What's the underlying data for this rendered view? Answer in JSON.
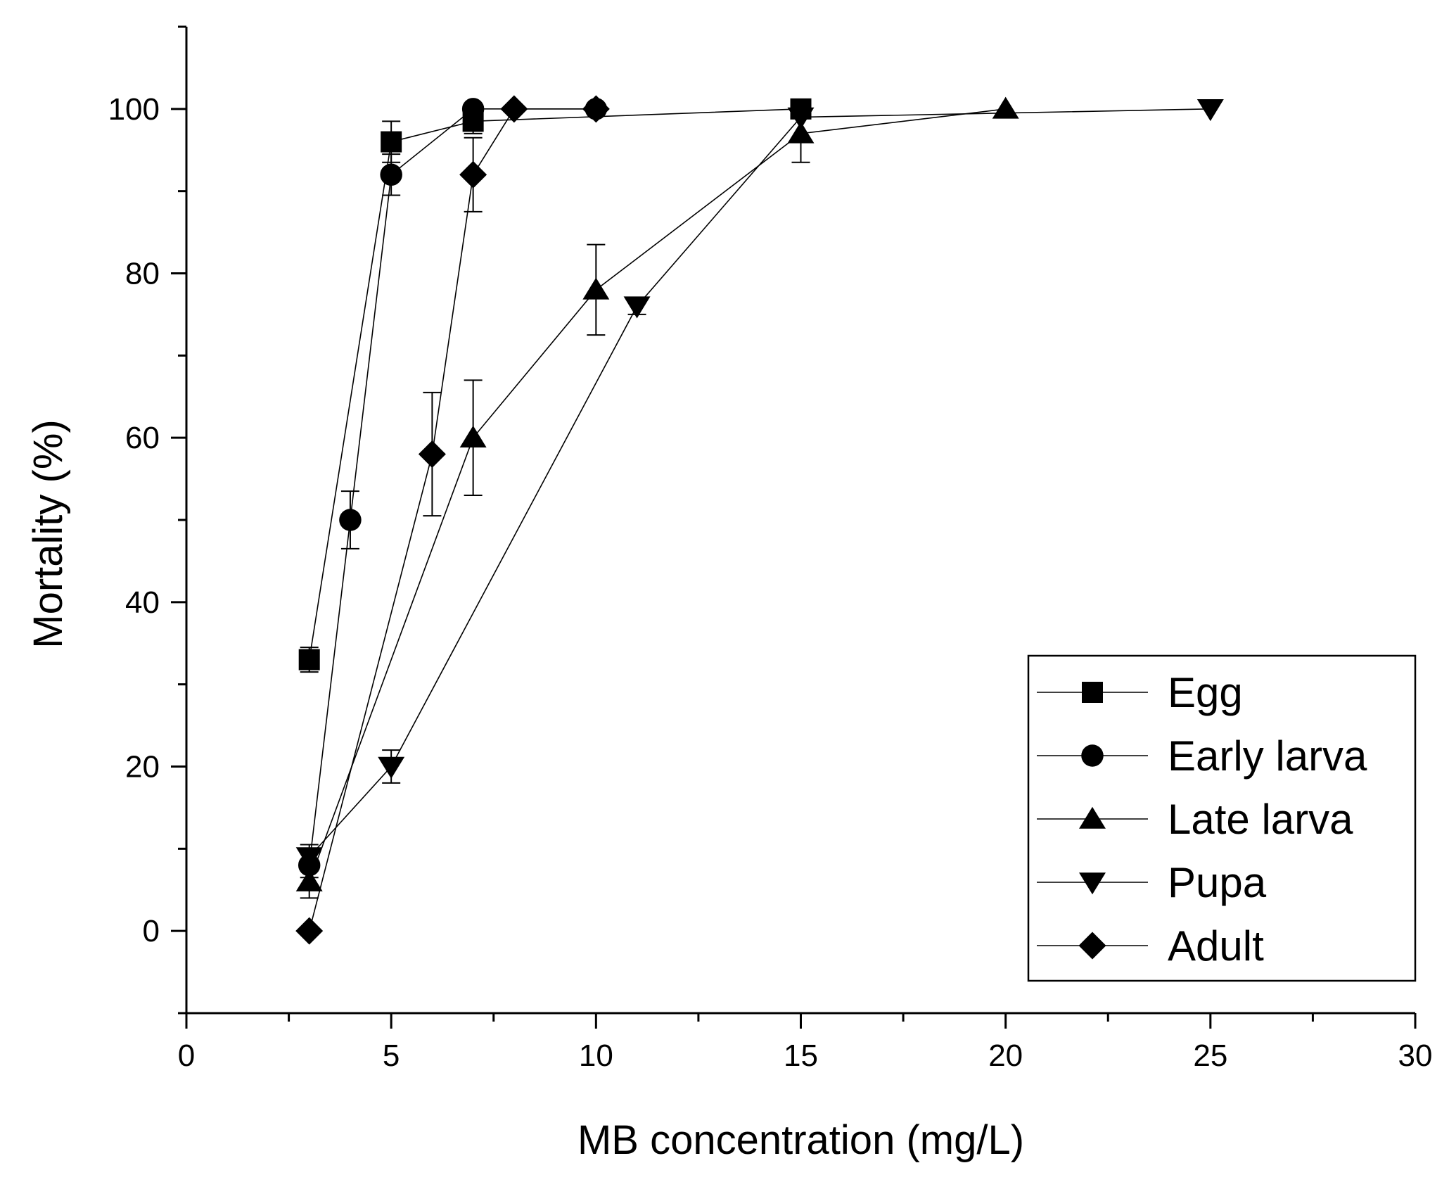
{
  "chart_data": {
    "type": "line",
    "xlabel": "MB concentration (mg/L)",
    "ylabel": "Mortality (%)",
    "xlim": [
      0,
      30
    ],
    "ylim": [
      -10,
      110
    ],
    "xticks": [
      0,
      5,
      10,
      15,
      20,
      25,
      30
    ],
    "yticks": [
      0,
      20,
      40,
      60,
      80,
      100
    ],
    "grid": false,
    "legend_position": "bottom-right",
    "series": [
      {
        "name": "Egg",
        "marker": "square",
        "x": [
          3,
          5,
          7,
          15
        ],
        "y": [
          33,
          96,
          98.5,
          100
        ],
        "err": [
          1.5,
          2.5,
          1.5,
          0
        ]
      },
      {
        "name": "Early larva",
        "marker": "circle",
        "x": [
          3,
          4,
          5,
          7,
          10
        ],
        "y": [
          8,
          50,
          92,
          100,
          100
        ],
        "err": [
          1.5,
          3.5,
          2.5,
          0,
          0
        ]
      },
      {
        "name": "Late larva",
        "marker": "triangle-up",
        "x": [
          3,
          7,
          10,
          15,
          20
        ],
        "y": [
          6,
          60,
          78,
          97,
          100
        ],
        "err": [
          2,
          7,
          5.5,
          3.5,
          0
        ]
      },
      {
        "name": "Pupa",
        "marker": "triangle-down",
        "x": [
          3,
          5,
          11,
          15,
          25
        ],
        "y": [
          9,
          20,
          76,
          99,
          100
        ],
        "err": [
          1.5,
          2,
          1,
          0,
          0
        ]
      },
      {
        "name": "Adult",
        "marker": "diamond",
        "x": [
          3,
          6,
          7,
          8,
          10
        ],
        "y": [
          0,
          58,
          92,
          100,
          100
        ],
        "err": [
          0,
          7.5,
          4.5,
          0,
          0
        ]
      }
    ]
  }
}
